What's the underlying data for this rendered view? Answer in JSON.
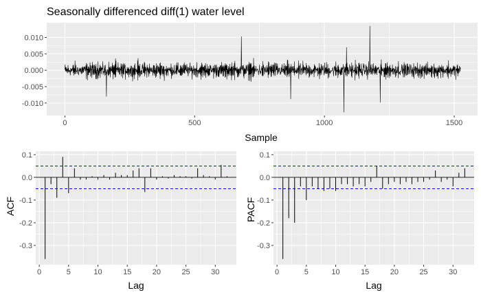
{
  "chart_data": [
    {
      "type": "line",
      "title": "Seasonally differenced diff(1) water level",
      "xlabel": "Sample",
      "ylabel": "",
      "xlim": [
        -70,
        1590
      ],
      "ylim": [
        -0.0138,
        0.0145
      ],
      "x_ticks": [
        0,
        500,
        1000,
        1500
      ],
      "y_ticks": [
        -0.01,
        -0.005,
        0.0,
        0.005,
        0.01
      ],
      "y_tick_labels": [
        "-0.010",
        "-0.005",
        "0.000",
        "0.005",
        "0.010"
      ],
      "n_samples": 1525,
      "amplitude": 0.0032,
      "noted_spikes": [
        {
          "x": 160,
          "y": -0.008
        },
        {
          "x": 680,
          "y": 0.0103
        },
        {
          "x": 870,
          "y": -0.0088
        },
        {
          "x": 1075,
          "y": -0.0128
        },
        {
          "x": 1085,
          "y": 0.007
        },
        {
          "x": 1175,
          "y": 0.0135
        },
        {
          "x": 1215,
          "y": -0.0098
        }
      ],
      "grid": true
    },
    {
      "type": "bar",
      "xlabel": "Lag",
      "ylabel": "ACF",
      "xlim": [
        -0.6,
        33.6
      ],
      "ylim": [
        -0.385,
        0.115
      ],
      "x_ticks": [
        0,
        5,
        10,
        15,
        20,
        25,
        30
      ],
      "y_ticks": [
        -0.3,
        -0.2,
        -0.1,
        0.0,
        0.1
      ],
      "y_tick_labels": [
        "-0.3",
        "-0.2",
        "-0.1",
        "0.0",
        "0.1"
      ],
      "lags": [
        1,
        2,
        3,
        4,
        5,
        6,
        7,
        8,
        9,
        10,
        11,
        12,
        13,
        14,
        15,
        16,
        17,
        18,
        19,
        20,
        21,
        22,
        23,
        24,
        25,
        26,
        27,
        28,
        29,
        30,
        31,
        32
      ],
      "values": [
        -0.36,
        -0.03,
        -0.09,
        0.09,
        -0.07,
        0.04,
        -0.01,
        -0.01,
        0.005,
        -0.01,
        0.01,
        -0.01,
        0.02,
        0.01,
        0.01,
        0.03,
        0.04,
        -0.065,
        0.04,
        -0.01,
        0.005,
        -0.005,
        0.01,
        0.005,
        0.005,
        -0.005,
        0.04,
        0.01,
        0.005,
        -0.01,
        0.055,
        0.005
      ],
      "ci": 0.05,
      "grid": true
    },
    {
      "type": "bar",
      "xlabel": "Lag",
      "ylabel": "PACF",
      "xlim": [
        -0.6,
        33.6
      ],
      "ylim": [
        -0.385,
        0.115
      ],
      "x_ticks": [
        0,
        5,
        10,
        15,
        20,
        25,
        30
      ],
      "y_ticks": [
        -0.3,
        -0.2,
        -0.1,
        0.0,
        0.1
      ],
      "y_tick_labels": [
        "-0.3",
        "-0.2",
        "-0.1",
        "0.0",
        "0.1"
      ],
      "lags": [
        1,
        2,
        3,
        4,
        5,
        6,
        7,
        8,
        9,
        10,
        11,
        12,
        13,
        14,
        15,
        16,
        17,
        18,
        19,
        20,
        21,
        22,
        23,
        24,
        25,
        26,
        27,
        28,
        29,
        30,
        31,
        32
      ],
      "values": [
        -0.36,
        -0.18,
        -0.2,
        -0.04,
        -0.1,
        -0.04,
        -0.05,
        -0.06,
        -0.05,
        -0.06,
        -0.03,
        -0.03,
        -0.04,
        -0.03,
        -0.04,
        -0.02,
        0.05,
        -0.05,
        -0.03,
        -0.02,
        -0.03,
        -0.02,
        -0.03,
        -0.02,
        -0.02,
        -0.01,
        0.03,
        -0.02,
        -0.01,
        -0.04,
        0.02,
        0.04
      ],
      "ci": 0.05,
      "grid": true
    }
  ]
}
